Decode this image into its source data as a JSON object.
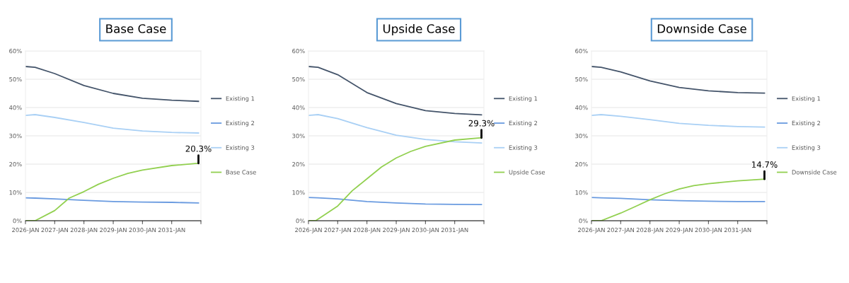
{
  "chart_data": [
    {
      "type": "line",
      "title": "Base Case",
      "xlim": [
        "2026-01",
        "2032-01"
      ],
      "xticks": [
        {
          "value": "2026-01",
          "label": "2026-JAN"
        },
        {
          "value": "2027-01",
          "label": "2027-JAN"
        },
        {
          "value": "2028-01",
          "label": "2028-JAN"
        },
        {
          "value": "2029-01",
          "label": "2029-JAN"
        },
        {
          "value": "2030-01",
          "label": "2030-JAN"
        },
        {
          "value": "2031-01",
          "label": "2031-JAN"
        },
        {
          "value": "2032-01",
          "label": null
        }
      ],
      "ylim": [
        0,
        60
      ],
      "yticks": [
        {
          "value": 0,
          "label": "0%"
        },
        {
          "value": 10,
          "label": "10%"
        },
        {
          "value": 20,
          "label": "20%"
        },
        {
          "value": 30,
          "label": "30%"
        },
        {
          "value": 40,
          "label": "40%"
        },
        {
          "value": 50,
          "label": "50%"
        },
        {
          "value": 60,
          "label": "60%"
        }
      ],
      "grid": "y",
      "legend": "right",
      "marker": "none",
      "line_style": "solid",
      "series": [
        {
          "name": "Existing 1",
          "color": "#44546a",
          "x": [
            "2026-01",
            "2026-05",
            "2027-01",
            "2028-01",
            "2029-01",
            "2030-01",
            "2031-01",
            "2031-12"
          ],
          "values": [
            54.5,
            54.2,
            52.0,
            47.8,
            45.0,
            43.3,
            42.6,
            42.2
          ]
        },
        {
          "name": "Existing 2",
          "color": "#6a9be0",
          "x": [
            "2026-01",
            "2026-05",
            "2027-01",
            "2028-01",
            "2029-01",
            "2030-01",
            "2031-01",
            "2031-12"
          ],
          "values": [
            8.1,
            8.0,
            7.7,
            7.2,
            6.8,
            6.6,
            6.5,
            6.3
          ]
        },
        {
          "name": "Existing 3",
          "color": "#a9d0f5",
          "x": [
            "2026-01",
            "2026-05",
            "2027-01",
            "2028-01",
            "2029-01",
            "2030-01",
            "2031-01",
            "2031-12"
          ],
          "values": [
            37.2,
            37.5,
            36.5,
            34.7,
            32.7,
            31.7,
            31.2,
            31.0
          ]
        },
        {
          "name": "Base Case",
          "color": "#92d050",
          "x": [
            "2026-01",
            "2026-05",
            "2027-01",
            "2027-07",
            "2028-01",
            "2028-07",
            "2029-01",
            "2029-07",
            "2030-01",
            "2031-01",
            "2031-12"
          ],
          "values": [
            0,
            0,
            3.6,
            8.0,
            10.3,
            12.9,
            15.0,
            16.7,
            17.9,
            19.5,
            20.3
          ]
        }
      ],
      "annotations": [
        {
          "text": "20.3%",
          "x": "2031-12",
          "y": 20.3
        }
      ]
    },
    {
      "type": "line",
      "title": "Upside Case",
      "xlim": [
        "2026-01",
        "2032-01"
      ],
      "xticks": [
        {
          "value": "2026-01",
          "label": "2026-JAN"
        },
        {
          "value": "2027-01",
          "label": "2027-JAN"
        },
        {
          "value": "2028-01",
          "label": "2028-JAN"
        },
        {
          "value": "2029-01",
          "label": "2029-JAN"
        },
        {
          "value": "2030-01",
          "label": "2030-JAN"
        },
        {
          "value": "2031-01",
          "label": "2031-JAN"
        },
        {
          "value": "2032-01",
          "label": null
        }
      ],
      "ylim": [
        0,
        60
      ],
      "yticks": [
        {
          "value": 0,
          "label": "0%"
        },
        {
          "value": 10,
          "label": "10%"
        },
        {
          "value": 20,
          "label": "20%"
        },
        {
          "value": 30,
          "label": "30%"
        },
        {
          "value": 40,
          "label": "40%"
        },
        {
          "value": 50,
          "label": "50%"
        },
        {
          "value": 60,
          "label": "60%"
        }
      ],
      "grid": "y",
      "legend": "right",
      "marker": "none",
      "line_style": "solid",
      "series": [
        {
          "name": "Existing 1",
          "color": "#44546a",
          "x": [
            "2026-01",
            "2026-05",
            "2027-01",
            "2028-01",
            "2029-01",
            "2030-01",
            "2031-01",
            "2031-12"
          ],
          "values": [
            54.5,
            54.2,
            51.6,
            45.3,
            41.4,
            38.9,
            37.9,
            37.4
          ]
        },
        {
          "name": "Existing 2",
          "color": "#6a9be0",
          "x": [
            "2026-01",
            "2026-05",
            "2027-01",
            "2028-01",
            "2029-01",
            "2030-01",
            "2031-01",
            "2031-12"
          ],
          "values": [
            8.2,
            8.1,
            7.7,
            6.8,
            6.3,
            5.9,
            5.8,
            5.7
          ]
        },
        {
          "name": "Existing 3",
          "color": "#a9d0f5",
          "x": [
            "2026-01",
            "2026-05",
            "2027-01",
            "2028-01",
            "2029-01",
            "2030-01",
            "2031-01",
            "2031-12"
          ],
          "values": [
            37.2,
            37.5,
            36.1,
            32.9,
            30.2,
            28.7,
            27.9,
            27.5
          ]
        },
        {
          "name": "Upside Case",
          "color": "#92d050",
          "x": [
            "2026-01",
            "2026-04",
            "2027-01",
            "2027-07",
            "2028-01",
            "2028-07",
            "2029-01",
            "2029-07",
            "2030-01",
            "2031-01",
            "2031-12"
          ],
          "values": [
            0,
            0,
            5.2,
            10.6,
            14.8,
            19.0,
            22.2,
            24.5,
            26.3,
            28.5,
            29.3
          ]
        }
      ],
      "annotations": [
        {
          "text": "29.3%",
          "x": "2031-12",
          "y": 29.3
        }
      ]
    },
    {
      "type": "line",
      "title": "Downside Case",
      "xlim": [
        "2026-01",
        "2032-01"
      ],
      "xticks": [
        {
          "value": "2026-01",
          "label": "2026-JAN"
        },
        {
          "value": "2027-01",
          "label": "2027-JAN"
        },
        {
          "value": "2028-01",
          "label": "2028-JAN"
        },
        {
          "value": "2029-01",
          "label": "2029-JAN"
        },
        {
          "value": "2030-01",
          "label": "2030-JAN"
        },
        {
          "value": "2031-01",
          "label": "2031-JAN"
        },
        {
          "value": "2032-01",
          "label": null
        }
      ],
      "ylim": [
        0,
        60
      ],
      "yticks": [
        {
          "value": 0,
          "label": "0%"
        },
        {
          "value": 10,
          "label": "10%"
        },
        {
          "value": 20,
          "label": "20%"
        },
        {
          "value": 30,
          "label": "30%"
        },
        {
          "value": 40,
          "label": "40%"
        },
        {
          "value": 50,
          "label": "50%"
        },
        {
          "value": 60,
          "label": "60%"
        }
      ],
      "grid": "y",
      "legend": "right",
      "marker": "none",
      "line_style": "solid",
      "series": [
        {
          "name": "Existing 1",
          "color": "#44546a",
          "x": [
            "2026-01",
            "2026-05",
            "2027-01",
            "2028-01",
            "2029-01",
            "2030-01",
            "2031-01",
            "2031-12"
          ],
          "values": [
            54.5,
            54.2,
            52.6,
            49.4,
            47.1,
            45.9,
            45.3,
            45.1
          ]
        },
        {
          "name": "Existing 2",
          "color": "#6a9be0",
          "x": [
            "2026-01",
            "2026-05",
            "2027-01",
            "2028-01",
            "2029-01",
            "2030-01",
            "2031-01",
            "2031-12"
          ],
          "values": [
            8.2,
            8.1,
            7.9,
            7.4,
            7.1,
            6.9,
            6.8,
            6.8
          ]
        },
        {
          "name": "Existing 3",
          "color": "#a9d0f5",
          "x": [
            "2026-01",
            "2026-05",
            "2027-01",
            "2028-01",
            "2029-01",
            "2030-01",
            "2031-01",
            "2031-12"
          ],
          "values": [
            37.2,
            37.5,
            36.9,
            35.7,
            34.4,
            33.7,
            33.3,
            33.1
          ]
        },
        {
          "name": "Downside Case",
          "color": "#92d050",
          "x": [
            "2026-01",
            "2026-05",
            "2027-01",
            "2027-07",
            "2028-01",
            "2028-07",
            "2029-01",
            "2029-07",
            "2030-01",
            "2031-01",
            "2031-12"
          ],
          "values": [
            0,
            0,
            2.7,
            5.0,
            7.4,
            9.5,
            11.2,
            12.4,
            13.1,
            14.1,
            14.7
          ]
        }
      ],
      "annotations": [
        {
          "text": "14.7%",
          "x": "2031-12",
          "y": 14.7
        }
      ]
    }
  ]
}
